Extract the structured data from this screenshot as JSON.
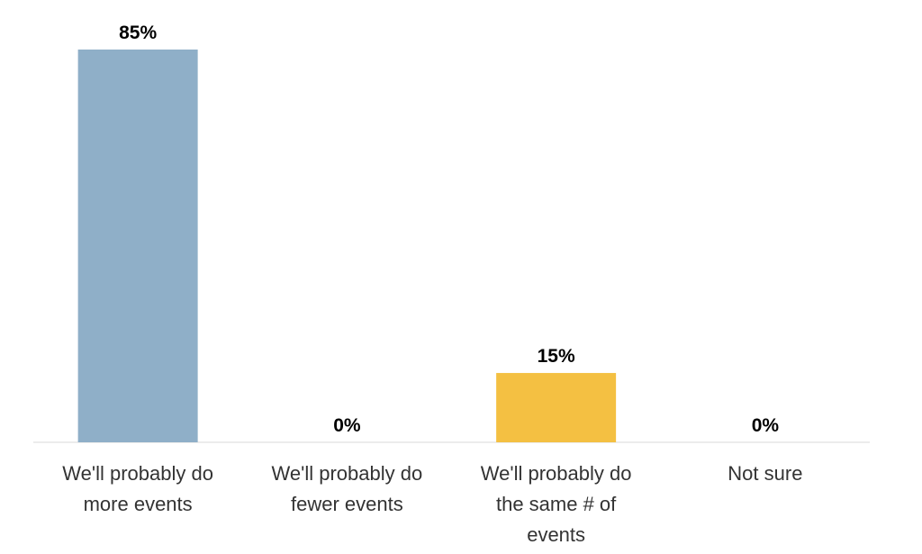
{
  "chart_data": {
    "type": "bar",
    "categories": [
      [
        "We'll probably do",
        "more events"
      ],
      [
        "We'll probably do",
        "fewer events"
      ],
      [
        "We'll probably do",
        "the same # of",
        "events"
      ],
      [
        "Not sure"
      ]
    ],
    "values": [
      85,
      0,
      15,
      0
    ],
    "data_labels": [
      "85%",
      "0%",
      "15%",
      "0%"
    ],
    "bar_colors": [
      "#8fafc8",
      "#8fafc8",
      "#f4c042",
      "#f4c042"
    ],
    "ylim": [
      0,
      85
    ],
    "grid": false,
    "legend": "none",
    "title": "",
    "xlabel": "",
    "ylabel": ""
  }
}
